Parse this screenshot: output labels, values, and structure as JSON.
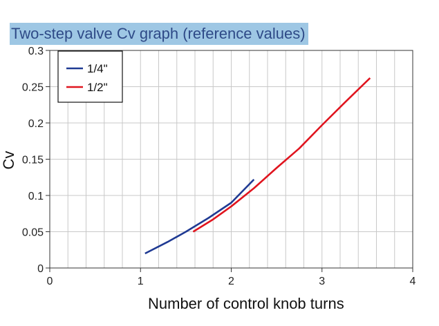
{
  "chart_data": {
    "type": "line",
    "title": "Two-step valve Cv graph (reference values)",
    "xlabel": "Number of control knob turns",
    "ylabel": "Cv",
    "xlim": [
      0,
      4
    ],
    "ylim": [
      0,
      0.3
    ],
    "x_ticks": [
      "0",
      "1",
      "2",
      "3",
      "4"
    ],
    "y_ticks": [
      "0",
      "0.05",
      "0.1",
      "0.15",
      "0.2",
      "0.25",
      "0.3"
    ],
    "grid": true,
    "legend_position": "top-left",
    "series": [
      {
        "name": "1/4\"",
        "color": "#1f3a93",
        "points": [
          [
            1.05,
            0.02
          ],
          [
            1.3,
            0.036
          ],
          [
            1.5,
            0.05
          ],
          [
            1.75,
            0.069
          ],
          [
            2.0,
            0.09
          ],
          [
            2.25,
            0.122
          ]
        ]
      },
      {
        "name": "1/2\"",
        "color": "#e0141e",
        "points": [
          [
            1.58,
            0.05
          ],
          [
            1.8,
            0.067
          ],
          [
            2.0,
            0.085
          ],
          [
            2.25,
            0.11
          ],
          [
            2.5,
            0.138
          ],
          [
            2.75,
            0.165
          ],
          [
            3.0,
            0.197
          ],
          [
            3.25,
            0.228
          ],
          [
            3.53,
            0.262
          ]
        ]
      }
    ]
  }
}
